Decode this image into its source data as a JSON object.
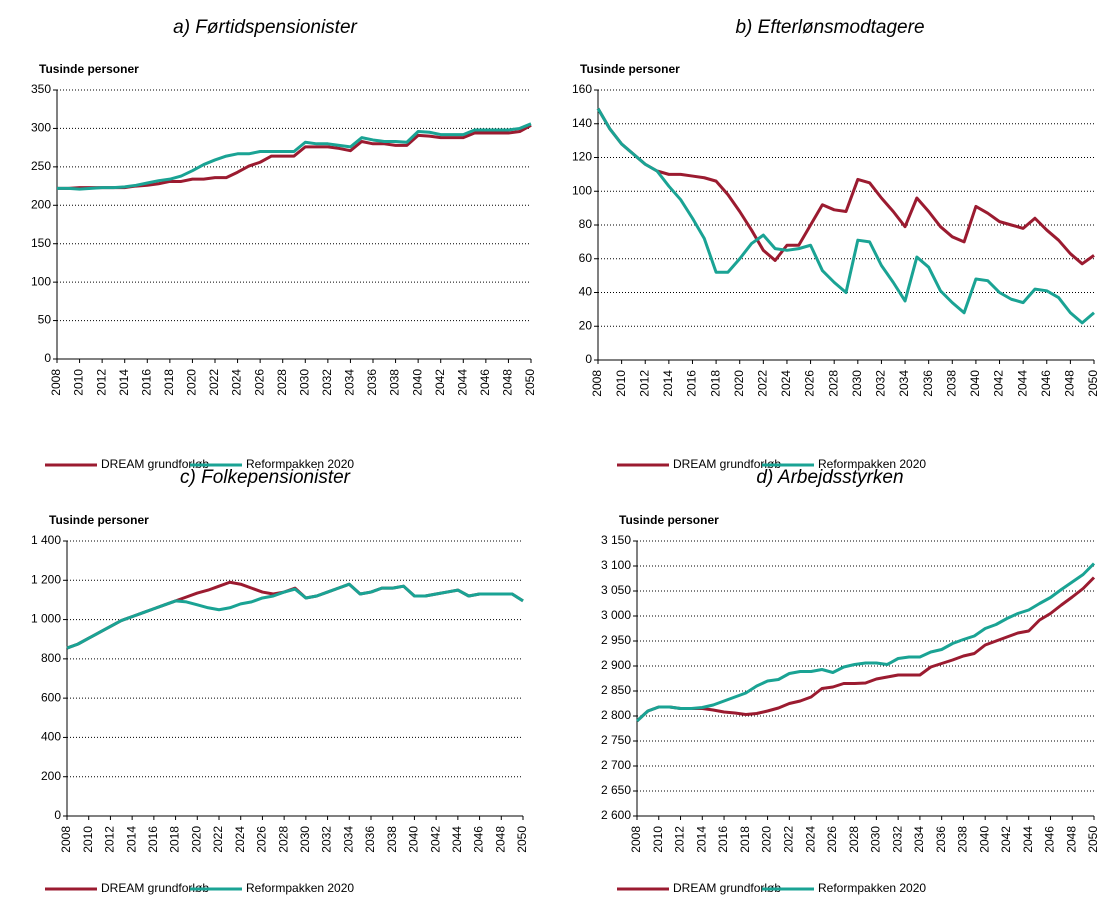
{
  "chart_data": [
    {
      "type": "line",
      "title": "a) Førtidspensionister",
      "y_label": "Tusinde personer",
      "x": [
        2008,
        2009,
        2010,
        2011,
        2012,
        2013,
        2014,
        2015,
        2016,
        2017,
        2018,
        2019,
        2020,
        2021,
        2022,
        2023,
        2024,
        2025,
        2026,
        2027,
        2028,
        2029,
        2030,
        2031,
        2032,
        2033,
        2034,
        2035,
        2036,
        2037,
        2038,
        2039,
        2040,
        2041,
        2042,
        2043,
        2044,
        2045,
        2046,
        2047,
        2048,
        2049,
        2050
      ],
      "xlim": [
        2008,
        2050
      ],
      "xticks": [
        2008,
        2010,
        2012,
        2014,
        2016,
        2018,
        2020,
        2022,
        2024,
        2026,
        2028,
        2030,
        2032,
        2034,
        2036,
        2038,
        2040,
        2042,
        2044,
        2046,
        2048,
        2050
      ],
      "ylim": [
        0,
        350
      ],
      "yticks": [
        0,
        50,
        100,
        150,
        200,
        250,
        300,
        350
      ],
      "grid": true,
      "series": [
        {
          "name": "DREAM grundforløb",
          "color": "#9b1b30",
          "values": [
            222,
            222,
            223,
            223,
            223,
            223,
            223,
            225,
            226,
            228,
            231,
            231,
            234,
            234,
            236,
            236,
            243,
            251,
            256,
            264,
            264,
            264,
            276,
            276,
            276,
            274,
            271,
            283,
            280,
            280,
            278,
            278,
            291,
            290,
            288,
            288,
            288,
            294,
            294,
            294,
            294,
            296,
            304
          ]
        },
        {
          "name": "Reformpakken 2020",
          "color": "#1aa394",
          "values": [
            222,
            222,
            221,
            222,
            223,
            223,
            224,
            226,
            229,
            232,
            234,
            238,
            245,
            253,
            259,
            264,
            267,
            267,
            270,
            270,
            270,
            270,
            282,
            280,
            280,
            278,
            276,
            288,
            285,
            283,
            283,
            282,
            296,
            295,
            292,
            292,
            292,
            298,
            298,
            298,
            298,
            300,
            306
          ]
        }
      ]
    },
    {
      "type": "line",
      "title": "b) Efterlønsmodtagere",
      "y_label": "Tusinde personer",
      "x": [
        2008,
        2009,
        2010,
        2011,
        2012,
        2013,
        2014,
        2015,
        2016,
        2017,
        2018,
        2019,
        2020,
        2021,
        2022,
        2023,
        2024,
        2025,
        2026,
        2027,
        2028,
        2029,
        2030,
        2031,
        2032,
        2033,
        2034,
        2035,
        2036,
        2037,
        2038,
        2039,
        2040,
        2041,
        2042,
        2043,
        2044,
        2045,
        2046,
        2047,
        2048,
        2049,
        2050
      ],
      "xlim": [
        2008,
        2050
      ],
      "xticks": [
        2008,
        2010,
        2012,
        2014,
        2016,
        2018,
        2020,
        2022,
        2024,
        2026,
        2028,
        2030,
        2032,
        2034,
        2036,
        2038,
        2040,
        2042,
        2044,
        2046,
        2048,
        2050
      ],
      "ylim": [
        0,
        160
      ],
      "yticks": [
        0,
        20,
        40,
        60,
        80,
        100,
        120,
        140,
        160
      ],
      "grid": true,
      "series": [
        {
          "name": "DREAM grundforløb",
          "color": "#9b1b30",
          "values": [
            149,
            137,
            128,
            122,
            116,
            112,
            110,
            110,
            109,
            108,
            106,
            98,
            88,
            77,
            65,
            59,
            68,
            68,
            80,
            92,
            89,
            88,
            107,
            105,
            96,
            88,
            79,
            96,
            88,
            79,
            73,
            70,
            91,
            87,
            82,
            80,
            78,
            84,
            77,
            71,
            63,
            57,
            62
          ]
        },
        {
          "name": "Reformpakken 2020",
          "color": "#1aa394",
          "values": [
            149,
            137,
            128,
            122,
            116,
            112,
            103,
            95,
            84,
            72,
            52,
            52,
            60,
            69,
            74,
            66,
            65,
            66,
            68,
            53,
            46,
            40,
            71,
            70,
            56,
            46,
            35,
            61,
            55,
            41,
            34,
            28,
            48,
            47,
            40,
            36,
            34,
            42,
            41,
            37,
            28,
            22,
            28
          ]
        }
      ]
    },
    {
      "type": "line",
      "title": "c) Folkepensionister",
      "y_label": "Tusinde personer",
      "x": [
        2008,
        2009,
        2010,
        2011,
        2012,
        2013,
        2014,
        2015,
        2016,
        2017,
        2018,
        2019,
        2020,
        2021,
        2022,
        2023,
        2024,
        2025,
        2026,
        2027,
        2028,
        2029,
        2030,
        2031,
        2032,
        2033,
        2034,
        2035,
        2036,
        2037,
        2038,
        2039,
        2040,
        2041,
        2042,
        2043,
        2044,
        2045,
        2046,
        2047,
        2048,
        2049,
        2050
      ],
      "xlim": [
        2008,
        2050
      ],
      "xticks": [
        2008,
        2010,
        2012,
        2014,
        2016,
        2018,
        2020,
        2022,
        2024,
        2026,
        2028,
        2030,
        2032,
        2034,
        2036,
        2038,
        2040,
        2042,
        2044,
        2046,
        2048,
        2050
      ],
      "ylim": [
        0,
        1400
      ],
      "yticks": [
        0,
        200,
        400,
        600,
        800,
        {
          "value": 1000,
          "label": "1 000"
        },
        {
          "value": 1200,
          "label": "1 200"
        },
        {
          "value": 1400,
          "label": "1 400"
        }
      ],
      "grid": true,
      "series": [
        {
          "name": "DREAM grundforløb",
          "color": "#9b1b30",
          "values": [
            855,
            875,
            905,
            935,
            965,
            995,
            1015,
            1035,
            1055,
            1075,
            1095,
            1115,
            1135,
            1150,
            1170,
            1190,
            1180,
            1160,
            1140,
            1130,
            1140,
            1160,
            1110,
            1120,
            1140,
            1160,
            1180,
            1130,
            1140,
            1160,
            1160,
            1170,
            1120,
            1120,
            1130,
            1140,
            1150,
            1120,
            1130,
            1130,
            1130,
            1130,
            1095
          ]
        },
        {
          "name": "Reformpakken 2020",
          "color": "#1aa394",
          "values": [
            855,
            875,
            905,
            935,
            965,
            995,
            1015,
            1035,
            1055,
            1075,
            1095,
            1090,
            1075,
            1060,
            1050,
            1060,
            1080,
            1090,
            1110,
            1120,
            1140,
            1155,
            1110,
            1120,
            1140,
            1160,
            1180,
            1130,
            1140,
            1160,
            1160,
            1170,
            1120,
            1120,
            1130,
            1140,
            1150,
            1120,
            1130,
            1130,
            1130,
            1130,
            1095
          ]
        }
      ]
    },
    {
      "type": "line",
      "title": "d) Arbejdsstyrken",
      "y_label": "Tusinde personer",
      "x": [
        2008,
        2009,
        2010,
        2011,
        2012,
        2013,
        2014,
        2015,
        2016,
        2017,
        2018,
        2019,
        2020,
        2021,
        2022,
        2023,
        2024,
        2025,
        2026,
        2027,
        2028,
        2029,
        2030,
        2031,
        2032,
        2033,
        2034,
        2035,
        2036,
        2037,
        2038,
        2039,
        2040,
        2041,
        2042,
        2043,
        2044,
        2045,
        2046,
        2047,
        2048,
        2049,
        2050
      ],
      "xlim": [
        2008,
        2050
      ],
      "xticks": [
        2008,
        2010,
        2012,
        2014,
        2016,
        2018,
        2020,
        2022,
        2024,
        2026,
        2028,
        2030,
        2032,
        2034,
        2036,
        2038,
        2040,
        2042,
        2044,
        2046,
        2048,
        2050
      ],
      "ylim": [
        2600,
        3150
      ],
      "yticks": [
        {
          "value": 2600,
          "label": "2 600"
        },
        {
          "value": 2650,
          "label": "2 650"
        },
        {
          "value": 2700,
          "label": "2 700"
        },
        {
          "value": 2750,
          "label": "2 750"
        },
        {
          "value": 2800,
          "label": "2 800"
        },
        {
          "value": 2850,
          "label": "2 850"
        },
        {
          "value": 2900,
          "label": "2 900"
        },
        {
          "value": 2950,
          "label": "2 950"
        },
        {
          "value": 3000,
          "label": "3 000"
        },
        {
          "value": 3050,
          "label": "3 050"
        },
        {
          "value": 3100,
          "label": "3 100"
        },
        {
          "value": 3150,
          "label": "3 150"
        }
      ],
      "grid": true,
      "series": [
        {
          "name": "DREAM grundforløb",
          "color": "#9b1b30",
          "values": [
            2790,
            2810,
            2818,
            2818,
            2815,
            2815,
            2815,
            2812,
            2808,
            2806,
            2803,
            2805,
            2810,
            2816,
            2825,
            2830,
            2838,
            2855,
            2858,
            2865,
            2865,
            2866,
            2874,
            2878,
            2882,
            2882,
            2882,
            2898,
            2905,
            2912,
            2920,
            2925,
            2942,
            2950,
            2958,
            2966,
            2970,
            2992,
            3005,
            3022,
            3038,
            3055,
            3077
          ]
        },
        {
          "name": "Reformpakken 2020",
          "color": "#1aa394",
          "values": [
            2790,
            2810,
            2818,
            2818,
            2815,
            2815,
            2817,
            2822,
            2830,
            2838,
            2846,
            2860,
            2870,
            2873,
            2885,
            2889,
            2889,
            2893,
            2887,
            2898,
            2903,
            2906,
            2906,
            2903,
            2915,
            2918,
            2918,
            2928,
            2933,
            2945,
            2953,
            2960,
            2975,
            2983,
            2995,
            3005,
            3012,
            3025,
            3037,
            3053,
            3068,
            3083,
            3105
          ]
        }
      ]
    }
  ]
}
